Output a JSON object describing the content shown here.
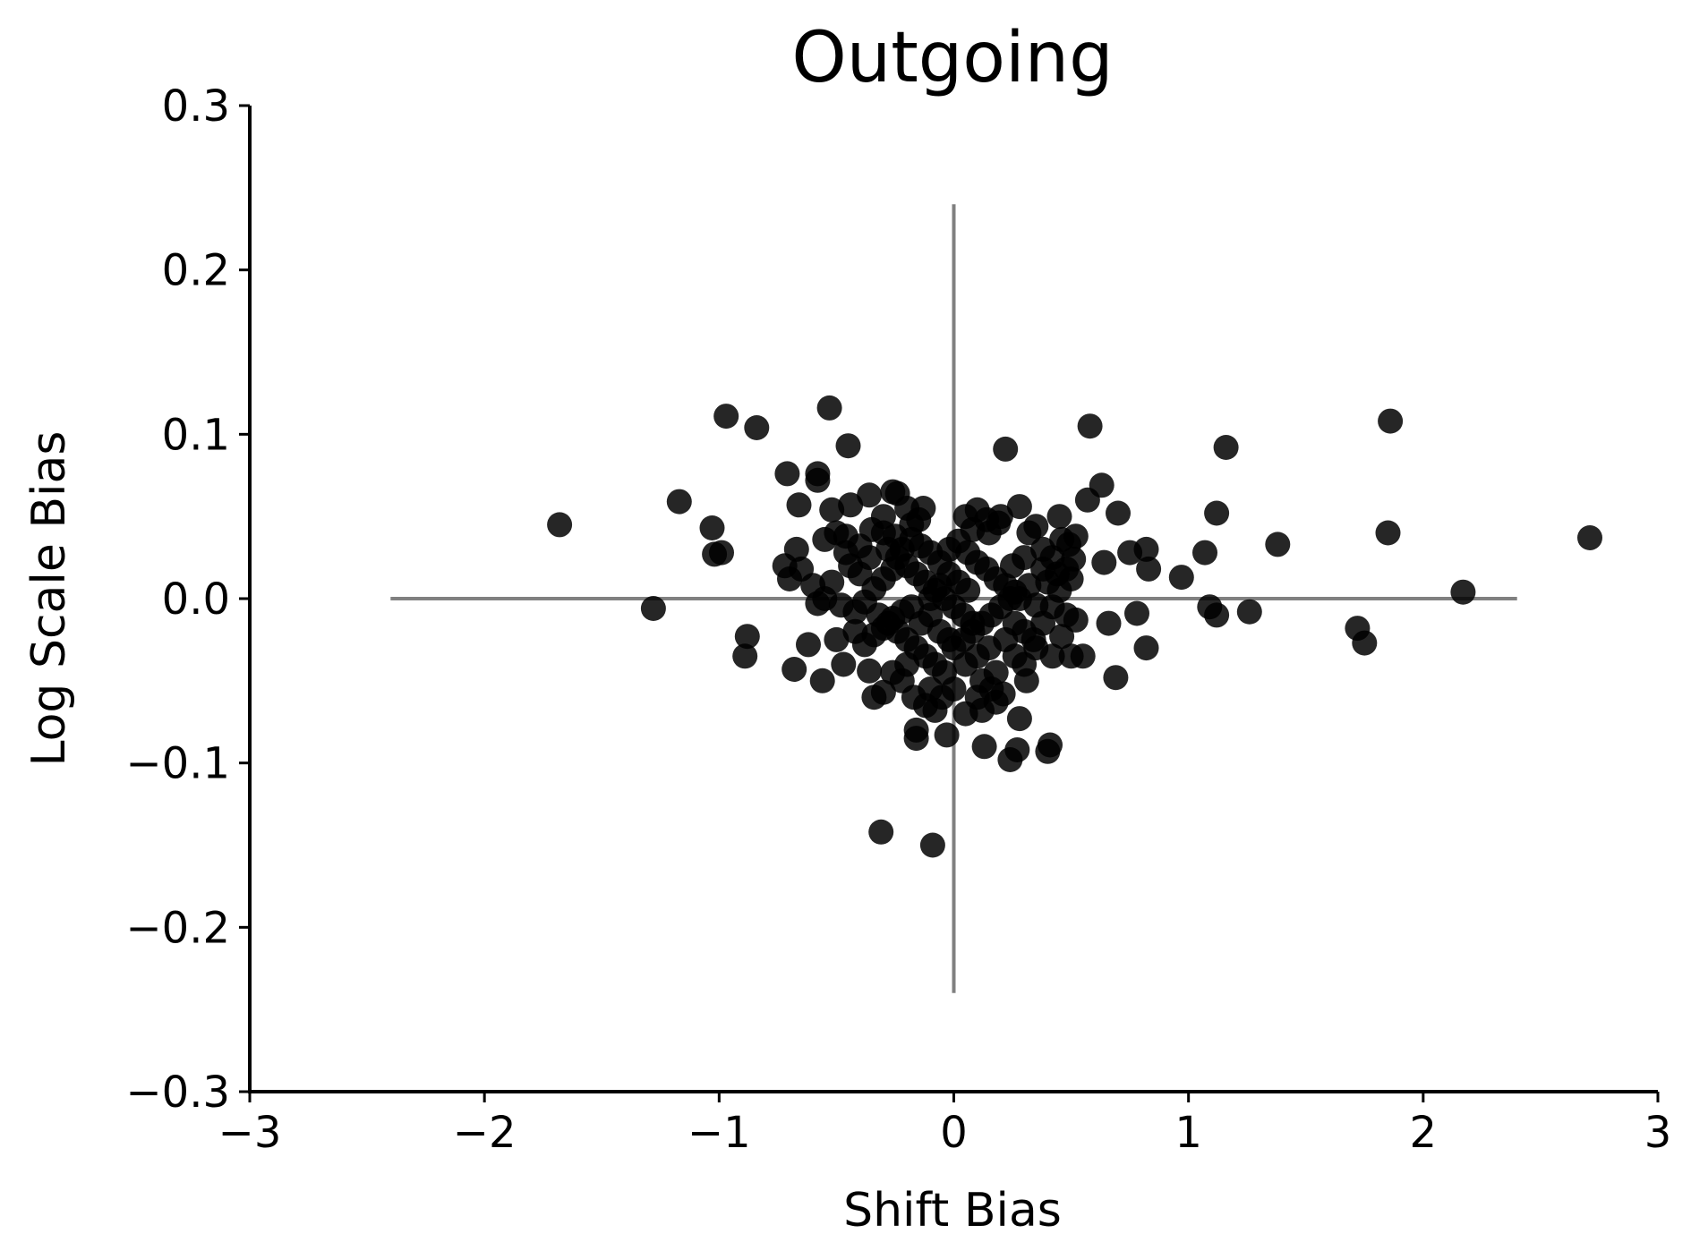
{
  "chart_data": {
    "type": "scatter",
    "title": "Outgoing",
    "xlabel": "Shift Bias",
    "ylabel": "Log Scale Bias",
    "xlim": [
      -3,
      3
    ],
    "ylim": [
      -0.3,
      0.3
    ],
    "xticks": [
      -3,
      -2,
      -1,
      0,
      1,
      2,
      3
    ],
    "yticks": [
      -0.3,
      -0.2,
      -0.1,
      0.0,
      0.1,
      0.2,
      0.3
    ],
    "xtick_labels": [
      "−3",
      "−2",
      "−1",
      "0",
      "1",
      "2",
      "3"
    ],
    "ytick_labels": [
      "−0.3",
      "−0.2",
      "−0.1",
      "0.0",
      "0.1",
      "0.2",
      "0.3"
    ],
    "grid": false,
    "reference_lines": {
      "horizontal": {
        "y": 0,
        "x_range": [
          -2.4,
          2.4
        ]
      },
      "vertical": {
        "x": 0,
        "y_range": [
          -0.24,
          0.24
        ]
      }
    },
    "colors": {
      "points": "#000000",
      "reference_lines": "#808080"
    },
    "points": [
      [
        -1.68,
        0.045
      ],
      [
        -1.17,
        0.059
      ],
      [
        -1.28,
        -0.006
      ],
      [
        -1.03,
        0.043
      ],
      [
        -1.02,
        0.027
      ],
      [
        -0.99,
        0.028
      ],
      [
        -0.97,
        0.111
      ],
      [
        -0.84,
        0.104
      ],
      [
        -0.88,
        -0.023
      ],
      [
        -0.89,
        -0.035
      ],
      [
        -0.71,
        0.076
      ],
      [
        -0.66,
        0.057
      ],
      [
        -0.53,
        0.116
      ],
      [
        -0.58,
        0.076
      ],
      [
        -0.58,
        0.072
      ],
      [
        -0.45,
        0.093
      ],
      [
        -0.36,
        0.063
      ],
      [
        -0.24,
        0.064
      ],
      [
        -0.26,
        0.065
      ],
      [
        -0.13,
        0.055
      ],
      [
        -0.44,
        0.057
      ],
      [
        -0.52,
        0.054
      ],
      [
        -0.67,
        0.03
      ],
      [
        -0.72,
        0.02
      ],
      [
        -0.7,
        0.012
      ],
      [
        -0.65,
        0.018
      ],
      [
        -0.55,
        0.036
      ],
      [
        -0.5,
        0.04
      ],
      [
        -0.46,
        0.038
      ],
      [
        -0.4,
        0.032
      ],
      [
        -0.35,
        0.042
      ],
      [
        -0.3,
        0.04
      ],
      [
        -0.25,
        0.038
      ],
      [
        -0.18,
        0.045
      ],
      [
        -0.15,
        0.048
      ],
      [
        -0.6,
        0.008
      ],
      [
        -0.55,
        0.0
      ],
      [
        -0.48,
        -0.004
      ],
      [
        -0.42,
        -0.008
      ],
      [
        -0.58,
        -0.003
      ],
      [
        -0.62,
        -0.028
      ],
      [
        -0.56,
        -0.05
      ],
      [
        -0.68,
        -0.043
      ],
      [
        -0.5,
        -0.025
      ],
      [
        -0.47,
        -0.04
      ],
      [
        -0.36,
        -0.044
      ],
      [
        -0.34,
        -0.06
      ],
      [
        -0.3,
        -0.057
      ],
      [
        -0.22,
        -0.05
      ],
      [
        -0.17,
        -0.06
      ],
      [
        -0.12,
        -0.065
      ],
      [
        -0.16,
        -0.08
      ],
      [
        -0.16,
        -0.085
      ],
      [
        -0.03,
        -0.083
      ],
      [
        -0.31,
        -0.142
      ],
      [
        -0.09,
        -0.15
      ],
      [
        -0.08,
        -0.068
      ],
      [
        -0.05,
        -0.06
      ],
      [
        0.0,
        -0.055
      ],
      [
        0.05,
        -0.07
      ],
      [
        0.12,
        -0.068
      ],
      [
        0.18,
        -0.063
      ],
      [
        0.21,
        -0.058
      ],
      [
        0.13,
        -0.09
      ],
      [
        0.24,
        -0.098
      ],
      [
        0.27,
        -0.092
      ],
      [
        0.28,
        -0.073
      ],
      [
        0.4,
        -0.093
      ],
      [
        0.41,
        -0.089
      ],
      [
        0.31,
        -0.05
      ],
      [
        0.35,
        -0.03
      ],
      [
        0.42,
        -0.035
      ],
      [
        0.5,
        -0.035
      ],
      [
        0.55,
        -0.035
      ],
      [
        0.46,
        -0.023
      ],
      [
        0.52,
        -0.013
      ],
      [
        0.48,
        -0.01
      ],
      [
        0.42,
        -0.005
      ],
      [
        0.45,
        0.005
      ],
      [
        0.5,
        0.012
      ],
      [
        0.48,
        0.018
      ],
      [
        0.51,
        0.024
      ],
      [
        0.49,
        0.033
      ],
      [
        0.52,
        0.038
      ],
      [
        0.46,
        0.036
      ],
      [
        0.45,
        0.05
      ],
      [
        0.57,
        0.06
      ],
      [
        0.63,
        0.069
      ],
      [
        0.58,
        0.105
      ],
      [
        0.7,
        0.052
      ],
      [
        0.64,
        0.022
      ],
      [
        0.75,
        0.028
      ],
      [
        0.82,
        0.03
      ],
      [
        0.83,
        0.018
      ],
      [
        0.66,
        -0.015
      ],
      [
        0.78,
        -0.009
      ],
      [
        0.82,
        -0.03
      ],
      [
        0.69,
        -0.048
      ],
      [
        0.97,
        0.013
      ],
      [
        1.07,
        0.028
      ],
      [
        1.12,
        0.052
      ],
      [
        1.16,
        0.092
      ],
      [
        1.09,
        -0.005
      ],
      [
        1.12,
        -0.01
      ],
      [
        1.26,
        -0.008
      ],
      [
        1.38,
        0.033
      ],
      [
        1.72,
        -0.018
      ],
      [
        1.75,
        -0.027
      ],
      [
        1.85,
        0.04
      ],
      [
        1.86,
        0.108
      ],
      [
        2.17,
        0.004
      ],
      [
        2.71,
        0.037
      ],
      [
        0.22,
        0.091
      ],
      [
        0.28,
        0.056
      ],
      [
        0.35,
        0.044
      ],
      [
        0.2,
        0.05
      ],
      [
        0.19,
        0.046
      ],
      [
        0.1,
        0.054
      ],
      [
        0.05,
        0.05
      ],
      [
        0.15,
        0.04
      ],
      [
        0.3,
        0.025
      ],
      [
        0.25,
        0.02
      ],
      [
        0.38,
        0.018
      ],
      [
        0.4,
        0.01
      ],
      [
        0.32,
        0.008
      ],
      [
        0.28,
        0.0
      ],
      [
        0.35,
        -0.004
      ],
      [
        0.38,
        -0.015
      ],
      [
        0.3,
        -0.02
      ],
      [
        0.22,
        -0.025
      ],
      [
        0.15,
        -0.03
      ],
      [
        0.1,
        -0.035
      ],
      [
        0.05,
        -0.04
      ],
      [
        0.18,
        -0.045
      ],
      [
        0.12,
        -0.05
      ],
      [
        0.08,
        -0.015
      ],
      [
        0.04,
        -0.01
      ],
      [
        0.0,
        -0.005
      ],
      [
        -0.04,
        0.0
      ],
      [
        -0.08,
        0.005
      ],
      [
        -0.12,
        0.01
      ],
      [
        -0.16,
        0.015
      ],
      [
        -0.2,
        0.02
      ],
      [
        -0.24,
        0.025
      ],
      [
        -0.28,
        0.03
      ],
      [
        -0.02,
        0.03
      ],
      [
        0.02,
        0.035
      ],
      [
        0.06,
        0.028
      ],
      [
        0.1,
        0.022
      ],
      [
        0.14,
        0.018
      ],
      [
        0.18,
        0.012
      ],
      [
        0.22,
        0.008
      ],
      [
        0.26,
        0.004
      ],
      [
        -0.06,
        0.022
      ],
      [
        -0.1,
        0.028
      ],
      [
        -0.14,
        0.032
      ],
      [
        -0.18,
        0.036
      ],
      [
        -0.22,
        0.03
      ],
      [
        -0.26,
        0.018
      ],
      [
        -0.3,
        0.012
      ],
      [
        -0.34,
        0.006
      ],
      [
        -0.38,
        -0.002
      ],
      [
        -0.32,
        -0.01
      ],
      [
        -0.28,
        -0.015
      ],
      [
        -0.24,
        -0.02
      ],
      [
        -0.2,
        -0.025
      ],
      [
        -0.16,
        -0.03
      ],
      [
        -0.12,
        -0.035
      ],
      [
        -0.08,
        -0.04
      ],
      [
        -0.04,
        -0.045
      ],
      [
        0.0,
        -0.03
      ],
      [
        0.04,
        -0.025
      ],
      [
        0.08,
        -0.02
      ],
      [
        0.12,
        -0.015
      ],
      [
        0.16,
        -0.01
      ],
      [
        0.2,
        -0.005
      ],
      [
        0.24,
        0.0
      ],
      [
        -0.1,
        -0.01
      ],
      [
        -0.14,
        -0.015
      ],
      [
        -0.06,
        -0.02
      ],
      [
        -0.02,
        -0.025
      ],
      [
        0.02,
        0.01
      ],
      [
        0.06,
        0.005
      ],
      [
        -0.02,
        0.015
      ],
      [
        -0.06,
        0.008
      ],
      [
        -0.1,
        0.0
      ],
      [
        -0.18,
        -0.005
      ],
      [
        -0.22,
        -0.008
      ],
      [
        -0.26,
        -0.012
      ],
      [
        -0.3,
        -0.018
      ],
      [
        -0.34,
        -0.022
      ],
      [
        -0.38,
        -0.028
      ],
      [
        -0.42,
        -0.02
      ],
      [
        -0.4,
        0.015
      ],
      [
        -0.44,
        0.02
      ],
      [
        -0.36,
        0.025
      ],
      [
        0.3,
        -0.04
      ],
      [
        0.26,
        -0.035
      ],
      [
        0.34,
        -0.025
      ],
      [
        0.38,
        0.03
      ],
      [
        0.42,
        0.025
      ],
      [
        0.44,
        0.015
      ],
      [
        0.14,
        0.048
      ],
      [
        0.08,
        0.042
      ],
      [
        -0.3,
        0.05
      ],
      [
        -0.2,
        0.055
      ],
      [
        0.16,
        -0.055
      ],
      [
        0.1,
        -0.06
      ],
      [
        -0.2,
        -0.04
      ],
      [
        -0.26,
        -0.045
      ],
      [
        -0.1,
        -0.055
      ],
      [
        0.26,
        -0.015
      ],
      [
        0.32,
        0.04
      ],
      [
        -0.46,
        0.028
      ],
      [
        -0.52,
        0.01
      ]
    ]
  }
}
